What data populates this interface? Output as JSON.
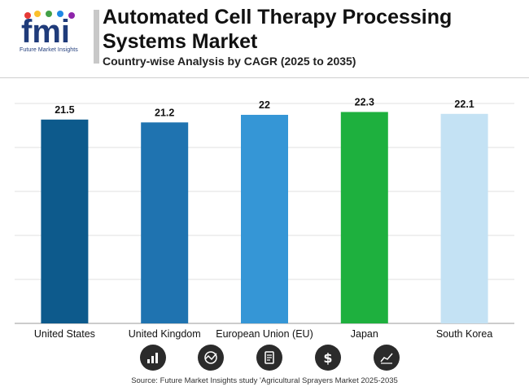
{
  "header": {
    "logo_text": "fmi",
    "logo_subtext": "Future Market Insights",
    "title": "Automated Cell Therapy Processing Systems Market",
    "subtitle": "Country-wise Analysis by CAGR (2025 to 2035)"
  },
  "colors": {
    "united_states": "#0d5a8c",
    "united_kingdom": "#1f73b0",
    "european_union": "#3596d6",
    "japan": "#1eb03e",
    "south_korea": "#c4e2f4"
  },
  "chart_data": {
    "type": "bar",
    "title": "Country-wise Analysis by CAGR (2025 to 2035)",
    "xlabel": "",
    "ylabel": "",
    "categories": [
      "United States",
      "United Kingdom",
      "European Union (EU)",
      "Japan",
      "South Korea"
    ],
    "values": [
      21.5,
      21.2,
      22,
      22.3,
      22.1
    ],
    "value_labels": [
      "21.5",
      "21.2",
      "22",
      "22.3",
      "22.1"
    ],
    "ylim": [
      0,
      23.2
    ],
    "grid": true
  },
  "icons": [
    "bar-chart-icon",
    "globe-chart-icon",
    "document-icon",
    "dollar-icon",
    "line-chart-icon"
  ],
  "source": "Source: Future Market Insights study 'Agricultural Sprayers Market 2025-2035"
}
